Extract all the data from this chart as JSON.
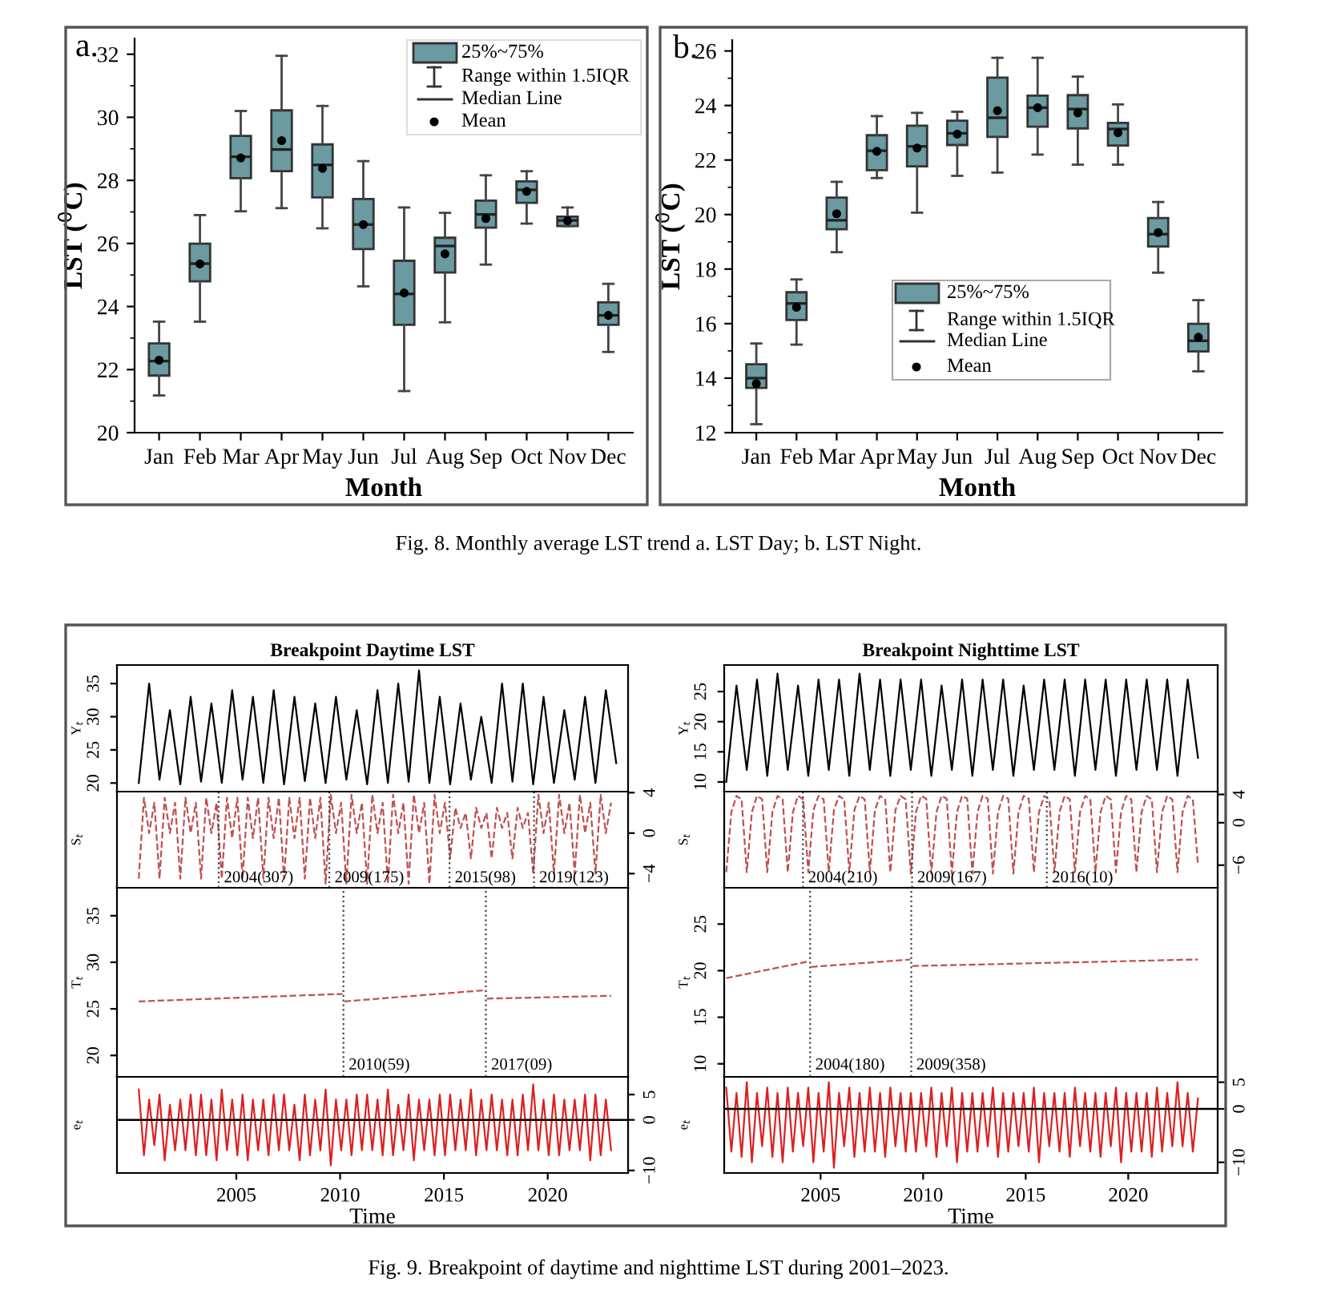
{
  "chart_data": [
    {
      "type": "box",
      "categories": [
        "Jan",
        "Feb",
        "Mar",
        "Apr",
        "May",
        "Jun",
        "Jul",
        "Aug",
        "Sep",
        "Oct",
        "Nov",
        "Dec"
      ],
      "series": [
        {
          "color": "#6b9aa1",
          "boxes": [
            {
              "low": 21.18,
              "q1": 21.81,
              "median": 22.27,
              "q3": 22.83,
              "high": 23.52,
              "mean": 22.3
            },
            {
              "low": 23.52,
              "q1": 24.8,
              "median": 25.36,
              "q3": 25.99,
              "high": 26.9,
              "mean": 25.35
            },
            {
              "low": 27.02,
              "q1": 28.07,
              "median": 28.75,
              "q3": 29.41,
              "high": 30.2,
              "mean": 28.71
            },
            {
              "low": 27.12,
              "q1": 28.29,
              "median": 28.98,
              "q3": 30.22,
              "high": 31.95,
              "mean": 29.26
            },
            {
              "low": 26.48,
              "q1": 27.46,
              "median": 28.49,
              "q3": 29.14,
              "high": 30.36,
              "mean": 28.38
            },
            {
              "low": 24.64,
              "q1": 25.82,
              "median": 26.6,
              "q3": 27.41,
              "high": 28.61,
              "mean": 26.6
            },
            {
              "low": 21.32,
              "q1": 23.42,
              "median": 24.4,
              "q3": 25.45,
              "high": 27.14,
              "mean": 24.43
            },
            {
              "low": 23.5,
              "q1": 25.08,
              "median": 25.92,
              "q3": 26.18,
              "high": 26.97,
              "mean": 25.67
            },
            {
              "low": 25.33,
              "q1": 26.5,
              "median": 26.92,
              "q3": 27.36,
              "high": 28.16,
              "mean": 26.79
            },
            {
              "low": 26.63,
              "q1": 27.29,
              "median": 27.7,
              "q3": 27.97,
              "high": 28.29,
              "mean": 27.65
            },
            {
              "low": 26.55,
              "q1": 26.55,
              "median": 26.73,
              "q3": 26.85,
              "high": 27.14,
              "mean": 26.72
            },
            {
              "low": 22.56,
              "q1": 23.42,
              "median": 23.72,
              "q3": 24.13,
              "high": 24.72,
              "mean": 23.72
            }
          ]
        }
      ],
      "ylim": [
        20,
        32.5
      ],
      "yticks": [
        20,
        22,
        24,
        26,
        28,
        30,
        32
      ],
      "xlabel": "Month",
      "ylabel": "LST ($^{0}$C)",
      "annotations": [
        "a.",
        "25%~75%",
        "Range within 1.5IQR",
        "Median Line",
        "Mean",
        "Fig. 8. Monthly average LST trend a. LST Day; b. LST Night."
      ]
    },
    {
      "type": "box",
      "categories": [
        "Jan",
        "Feb",
        "Mar",
        "Apr",
        "May",
        "Jun",
        "Jul",
        "Aug",
        "Sep",
        "Oct",
        "Nov",
        "Dec"
      ],
      "series": [
        {
          "color": "#6b9aa1",
          "boxes": [
            {
              "low": 12.31,
              "q1": 13.64,
              "median": 14.0,
              "q3": 14.51,
              "high": 15.27,
              "mean": 13.8
            },
            {
              "low": 15.23,
              "q1": 16.13,
              "median": 16.74,
              "q3": 17.15,
              "high": 17.62,
              "mean": 16.6
            },
            {
              "low": 18.62,
              "q1": 19.46,
              "median": 19.79,
              "q3": 20.62,
              "high": 21.2,
              "mean": 20.03
            },
            {
              "low": 21.34,
              "q1": 21.63,
              "median": 22.34,
              "q3": 22.91,
              "high": 23.61,
              "mean": 22.32
            },
            {
              "low": 20.07,
              "q1": 21.77,
              "median": 22.5,
              "q3": 23.26,
              "high": 23.73,
              "mean": 22.44
            },
            {
              "low": 21.42,
              "q1": 22.55,
              "median": 22.98,
              "q3": 23.44,
              "high": 23.77,
              "mean": 22.95
            },
            {
              "low": 21.54,
              "q1": 22.85,
              "median": 23.55,
              "q3": 25.02,
              "high": 25.75,
              "mean": 23.81
            },
            {
              "low": 22.2,
              "q1": 23.22,
              "median": 23.92,
              "q3": 24.36,
              "high": 25.75,
              "mean": 23.92
            },
            {
              "low": 21.83,
              "q1": 23.16,
              "median": 23.87,
              "q3": 24.38,
              "high": 25.06,
              "mean": 23.73
            },
            {
              "low": 21.83,
              "q1": 22.53,
              "median": 23.14,
              "q3": 23.36,
              "high": 24.04,
              "mean": 23.0
            },
            {
              "low": 17.87,
              "q1": 18.83,
              "median": 19.28,
              "q3": 19.87,
              "high": 20.46,
              "mean": 19.34
            },
            {
              "low": 14.25,
              "q1": 14.98,
              "median": 15.37,
              "q3": 15.99,
              "high": 16.86,
              "mean": 15.5
            }
          ]
        }
      ],
      "ylim": [
        12,
        26.4
      ],
      "yticks": [
        12,
        14,
        16,
        18,
        20,
        22,
        24,
        26
      ],
      "xlabel": "Month",
      "ylabel": "LST ($^{0}$C)",
      "annotations": [
        "b.",
        "25%~75%",
        "Range within 1.5IQR",
        "Median Line",
        "Mean"
      ]
    },
    {
      "type": "line",
      "title": "Breakpoint Daytime LST",
      "ylabel": "Y$_{t}$",
      "tick_labels": "y",
      "xlim": [
        1999.25,
        2023.87
      ],
      "xticks": [
        2005,
        2010,
        2015,
        2020
      ],
      "ylim": [
        18.7,
        37.8
      ],
      "yticks": [
        20,
        25,
        30,
        35
      ],
      "x": [
        2000.3,
        2000.8,
        2001.3,
        2001.8,
        2002.3,
        2002.8,
        2003.3,
        2003.8,
        2004.3,
        2004.8,
        2005.3,
        2005.8,
        2006.3,
        2006.8,
        2007.3,
        2007.8,
        2008.3,
        2008.8,
        2009.3,
        2009.8,
        2010.3,
        2010.8,
        2011.3,
        2011.8,
        2012.3,
        2012.8,
        2013.3,
        2013.8,
        2014.3,
        2014.8,
        2015.3,
        2015.8,
        2016.3,
        2016.8,
        2017.3,
        2017.8,
        2018.3,
        2018.8,
        2019.3,
        2019.8,
        2020.3,
        2020.8,
        2021.3,
        2021.8,
        2022.3,
        2022.8,
        2023.3
      ],
      "series": [
        {
          "color": "#000000",
          "values": [
            20,
            35,
            20.5,
            31,
            19.8,
            33,
            20.2,
            32,
            20,
            34,
            20.5,
            33,
            20,
            34,
            19.8,
            33,
            20.3,
            32,
            20,
            33,
            20.5,
            31,
            19.8,
            34,
            20,
            35,
            20.2,
            37,
            20,
            33,
            19.8,
            32,
            20.5,
            30,
            20,
            35,
            20.2,
            35,
            19.8,
            33,
            20,
            31,
            20.5,
            33,
            20,
            34,
            23
          ]
        }
      ]
    },
    {
      "type": "line",
      "ylabel": "S$_{t}$",
      "tick_labels": "y",
      "xlim": [
        1999.25,
        2023.87
      ],
      "xticks": [
        2005,
        2010,
        2015,
        2020
      ],
      "y2lim": [
        -5.4,
        4.1
      ],
      "y2ticks": [
        {
          "value": -4,
          "label": "−4"
        },
        0,
        4
      ],
      "x": [
        2000.3,
        2000.55,
        2000.8,
        2001.05,
        2001.3,
        2001.55,
        2001.8,
        2002.05,
        2002.3,
        2002.55,
        2002.8,
        2003.05,
        2003.3,
        2003.55,
        2003.8,
        2004.05,
        2004.3,
        2004.55,
        2004.8,
        2005.05,
        2005.3,
        2005.55,
        2005.8,
        2006.05,
        2006.3,
        2006.55,
        2006.8,
        2007.05,
        2007.3,
        2007.55,
        2007.8,
        2008.05,
        2008.3,
        2008.55,
        2008.8,
        2009.05,
        2009.3,
        2009.55,
        2009.8,
        2010.05,
        2010.3,
        2010.55,
        2010.8,
        2011.05,
        2011.3,
        2011.55,
        2011.8,
        2012.05,
        2012.3,
        2012.55,
        2012.8,
        2013.05,
        2013.3,
        2013.55,
        2013.8,
        2014.05,
        2014.3,
        2014.55,
        2014.8,
        2015.05,
        2015.3,
        2015.55,
        2015.8,
        2016.05,
        2016.3,
        2016.55,
        2016.8,
        2017.05,
        2017.3,
        2017.55,
        2017.8,
        2018.05,
        2018.3,
        2018.55,
        2018.8,
        2019.05,
        2019.3,
        2019.55,
        2019.8,
        2020.05,
        2020.3,
        2020.55,
        2020.8,
        2021.05,
        2021.3,
        2021.55,
        2021.8,
        2022.05,
        2022.3,
        2022.55,
        2022.8,
        2023.05
      ],
      "series": [
        {
          "color": "#c05050",
          "axis": "y2",
          "line_style": "dashed",
          "values": [
            -4.5,
            3.5,
            0,
            3,
            -4.5,
            3.5,
            0,
            3,
            -4.5,
            3.5,
            0,
            3,
            -4.5,
            3.5,
            0,
            3,
            -4.5,
            3.5,
            -0.5,
            3.5,
            -4.5,
            3.5,
            -0.5,
            3.5,
            -4.5,
            3.5,
            -0.5,
            3.5,
            -4.5,
            3.5,
            -0.5,
            3.5,
            -4.5,
            3.5,
            -0.5,
            3.5,
            -5,
            3.8,
            0,
            3,
            -5,
            3.8,
            0,
            3,
            -5,
            3.8,
            0,
            3,
            -5,
            3.8,
            0,
            3,
            -5,
            3.8,
            0,
            3,
            -5,
            3.8,
            0,
            3,
            -2.5,
            2.5,
            0.5,
            2,
            -2.5,
            2.5,
            0.5,
            2,
            -2.5,
            2.5,
            0.5,
            2,
            -2.5,
            2.5,
            0.5,
            2,
            -4,
            3.8,
            0,
            3,
            -4,
            3.8,
            0,
            3,
            -4,
            3.8,
            0,
            3,
            -4,
            3.8,
            0,
            3
          ]
        }
      ],
      "ref_lines": [
        {
          "axis": "x",
          "value": 2004.15,
          "label": "2004(307)",
          "line_style": "dotted"
        },
        {
          "axis": "x",
          "value": 2009.48,
          "label": "2009(175)",
          "line_style": "dotted"
        },
        {
          "axis": "x",
          "value": 2015.27,
          "label": "2015(98)",
          "line_style": "dotted"
        },
        {
          "axis": "x",
          "value": 2019.34,
          "label": "2019(123)",
          "line_style": "dotted"
        }
      ]
    },
    {
      "type": "line",
      "ylabel": "T$_{t}$",
      "tick_labels": "y",
      "xlim": [
        1999.25,
        2023.87
      ],
      "xticks": [
        2005,
        2010,
        2015,
        2020
      ],
      "ylim": [
        17.7,
        38
      ],
      "yticks": [
        20,
        25,
        30,
        35
      ],
      "x": [
        2000.3,
        2010.11,
        2010.16,
        2010.21,
        2016.97,
        2017.02,
        2017.07,
        2023.05
      ],
      "series": [
        {
          "color": "#c05050",
          "line_style": "dashed",
          "values": [
            25.8,
            26.6,
            null,
            25.8,
            27.0,
            null,
            26.1,
            26.4
          ]
        }
      ],
      "ref_lines": [
        {
          "axis": "x",
          "value": 2010.16,
          "label": "2010(59)",
          "line_style": "dotted"
        },
        {
          "axis": "x",
          "value": 2017.02,
          "label": "2017(09)",
          "line_style": "dotted"
        }
      ]
    },
    {
      "type": "line",
      "ylabel": "e$_{t}$",
      "xlabel": "Time",
      "xlim": [
        1999.25,
        2023.87
      ],
      "xticks": [
        2005,
        2010,
        2015,
        2020
      ],
      "y2lim": [
        -10.5,
        8.5
      ],
      "y2ticks": [
        {
          "value": -10,
          "label": "−10"
        },
        0,
        5
      ],
      "x": [
        2000.3,
        2000.55,
        2000.8,
        2001.05,
        2001.3,
        2001.55,
        2001.8,
        2002.05,
        2002.3,
        2002.55,
        2002.8,
        2003.05,
        2003.3,
        2003.55,
        2003.8,
        2004.05,
        2004.3,
        2004.55,
        2004.8,
        2005.05,
        2005.3,
        2005.55,
        2005.8,
        2006.05,
        2006.3,
        2006.55,
        2006.8,
        2007.05,
        2007.3,
        2007.55,
        2007.8,
        2008.05,
        2008.3,
        2008.55,
        2008.8,
        2009.05,
        2009.3,
        2009.55,
        2009.8,
        2010.05,
        2010.3,
        2010.55,
        2010.8,
        2011.05,
        2011.3,
        2011.55,
        2011.8,
        2012.05,
        2012.3,
        2012.55,
        2012.8,
        2013.05,
        2013.3,
        2013.55,
        2013.8,
        2014.05,
        2014.3,
        2014.55,
        2014.8,
        2015.05,
        2015.3,
        2015.55,
        2015.8,
        2016.05,
        2016.3,
        2016.55,
        2016.8,
        2017.05,
        2017.3,
        2017.55,
        2017.8,
        2018.05,
        2018.3,
        2018.55,
        2018.8,
        2019.05,
        2019.3,
        2019.55,
        2019.8,
        2020.05,
        2020.3,
        2020.55,
        2020.8,
        2021.05,
        2021.3,
        2021.55,
        2021.8,
        2022.05,
        2022.3,
        2022.55,
        2022.8,
        2023.05
      ],
      "series": [
        {
          "color": "#dd2020",
          "axis": "y2",
          "values": [
            6,
            -7,
            4,
            -5,
            5,
            -8,
            3,
            -6,
            4,
            -6,
            5,
            -7,
            5,
            -7,
            4,
            -8,
            6,
            -6,
            4,
            -7,
            5,
            -8,
            4,
            -6,
            4,
            -7,
            5,
            -6,
            5,
            -6,
            3,
            -8,
            5,
            -7,
            4,
            -6,
            6,
            -9,
            4,
            -6,
            4,
            -7,
            5,
            -6,
            5,
            -6,
            4,
            -7,
            6,
            -7,
            3,
            -6,
            5,
            -8,
            4,
            -6,
            4,
            -7,
            5,
            -7,
            5,
            -6,
            4,
            -6,
            6,
            -7,
            4,
            -6,
            5,
            -6,
            4,
            -7,
            4,
            -7,
            5,
            -6,
            7,
            -6,
            4,
            -7,
            5,
            -7,
            4,
            -6,
            4,
            -6,
            5,
            -8,
            5,
            -7,
            4,
            -6
          ]
        }
      ],
      "ref_lines": [
        {
          "axis": "y2",
          "value": 0,
          "color": "#000000",
          "line_style": "solid"
        }
      ],
      "annotations": [
        "Fig. 9. Breakpoint of daytime and nighttime LST during 2001–2023."
      ]
    },
    {
      "type": "line",
      "title": "Breakpoint Nighttime LST",
      "ylabel": "Y$_{t}$",
      "tick_labels": "y",
      "xlim": [
        2000.3,
        2024.36
      ],
      "xticks": [
        2005,
        2010,
        2015,
        2020
      ],
      "ylim": [
        8.4,
        29.4
      ],
      "yticks": [
        10,
        15,
        20,
        25
      ],
      "x": [
        2000.4,
        2000.9,
        2001.4,
        2001.9,
        2002.4,
        2002.9,
        2003.4,
        2003.9,
        2004.4,
        2004.9,
        2005.4,
        2005.9,
        2006.4,
        2006.9,
        2007.4,
        2007.9,
        2008.4,
        2008.9,
        2009.4,
        2009.9,
        2010.4,
        2010.9,
        2011.4,
        2011.9,
        2012.4,
        2012.9,
        2013.4,
        2013.9,
        2014.4,
        2014.9,
        2015.4,
        2015.9,
        2016.4,
        2016.9,
        2017.4,
        2017.9,
        2018.4,
        2018.9,
        2019.4,
        2019.9,
        2020.4,
        2020.9,
        2021.4,
        2021.9,
        2022.4,
        2022.9,
        2023.4
      ],
      "series": [
        {
          "color": "#000000",
          "values": [
            10,
            26,
            12,
            27,
            11,
            28,
            12,
            26,
            11,
            27,
            12,
            27,
            11,
            28,
            12,
            27,
            11,
            27,
            12,
            27,
            11,
            26,
            12,
            27,
            11,
            27,
            12,
            27,
            11,
            26,
            12,
            27,
            12,
            27,
            11,
            27,
            12,
            27,
            11,
            27,
            12,
            27,
            12,
            27,
            11,
            27,
            14
          ]
        }
      ]
    },
    {
      "type": "line",
      "ylabel": "S$_{t}$",
      "tick_labels": "y",
      "xlim": [
        2000.3,
        2024.36
      ],
      "xticks": [
        2005,
        2010,
        2015,
        2020
      ],
      "y2lim": [
        -9.2,
        4.4
      ],
      "y2ticks": [
        {
          "value": -6,
          "label": "−6"
        },
        0,
        4
      ],
      "x": [
        2000.4,
        2000.65,
        2000.9,
        2001.15,
        2001.4,
        2001.65,
        2001.9,
        2002.15,
        2002.4,
        2002.65,
        2002.9,
        2003.15,
        2003.4,
        2003.65,
        2003.9,
        2004.15,
        2004.4,
        2004.65,
        2004.9,
        2005.15,
        2005.4,
        2005.65,
        2005.9,
        2006.15,
        2006.4,
        2006.65,
        2006.9,
        2007.15,
        2007.4,
        2007.65,
        2007.9,
        2008.15,
        2008.4,
        2008.65,
        2008.9,
        2009.15,
        2009.4,
        2009.65,
        2009.9,
        2010.15,
        2010.4,
        2010.65,
        2010.9,
        2011.15,
        2011.4,
        2011.65,
        2011.9,
        2012.15,
        2012.4,
        2012.65,
        2012.9,
        2013.15,
        2013.4,
        2013.65,
        2013.9,
        2014.15,
        2014.4,
        2014.65,
        2014.9,
        2015.15,
        2015.4,
        2015.65,
        2015.9,
        2016.15,
        2016.4,
        2016.65,
        2016.9,
        2017.15,
        2017.4,
        2017.65,
        2017.9,
        2018.15,
        2018.4,
        2018.65,
        2018.9,
        2019.15,
        2019.4,
        2019.65,
        2019.9,
        2020.15,
        2020.4,
        2020.65,
        2020.9,
        2021.15,
        2021.4,
        2021.65,
        2021.9,
        2022.15,
        2022.4,
        2022.65,
        2022.9,
        2023.15,
        2023.4
      ],
      "series": [
        {
          "color": "#c05050",
          "axis": "y2",
          "line_style": "dashed",
          "values": [
            -7,
            1.5,
            3.8,
            3.3,
            -7,
            1.5,
            3.8,
            3.3,
            -7,
            1.5,
            3.8,
            3.3,
            -7,
            1.5,
            3.8,
            3.3,
            -7,
            1.8,
            3.8,
            3.3,
            -7,
            1.8,
            3.8,
            3.3,
            -7,
            1.8,
            3.8,
            3.3,
            -7,
            1.8,
            3.8,
            3.3,
            -7,
            1.8,
            3.8,
            3.3,
            -7.2,
            1.5,
            3.8,
            3.4,
            -7.2,
            1.5,
            3.8,
            3.4,
            -7.2,
            1.5,
            3.8,
            3.4,
            -7.2,
            1.5,
            3.8,
            3.4,
            -7.2,
            1.5,
            3.8,
            3.4,
            -7.2,
            1.5,
            3.8,
            3.4,
            -7,
            1.5,
            3.8,
            3.3,
            -7,
            1.5,
            3.8,
            3.3,
            -7,
            1.5,
            3.8,
            3.3,
            -7,
            1.5,
            3.8,
            3.3,
            -7,
            1.5,
            3.8,
            3.3,
            -7,
            1.5,
            3.8,
            3.3,
            -7,
            1.5,
            3.8,
            3.3,
            -7,
            1.5,
            3.8,
            3.3,
            -6
          ]
        }
      ],
      "ref_lines": [
        {
          "axis": "x",
          "value": 2004.14,
          "label": "2004(210)",
          "line_style": "dotted"
        },
        {
          "axis": "x",
          "value": 2009.46,
          "label": "2009(167)",
          "line_style": "dotted"
        },
        {
          "axis": "x",
          "value": 2016.03,
          "label": "2016(10)",
          "line_style": "dotted"
        }
      ]
    },
    {
      "type": "line",
      "ylabel": "T$_{t}$",
      "tick_labels": "y",
      "xlim": [
        2000.3,
        2024.36
      ],
      "xticks": [
        2005,
        2010,
        2015,
        2020
      ],
      "ylim": [
        8.6,
        28.9
      ],
      "yticks": [
        10,
        15,
        20,
        25
      ],
      "x": [
        2000.4,
        2004.44,
        2004.49,
        2004.54,
        2009.37,
        2009.42,
        2009.47,
        2023.4
      ],
      "series": [
        {
          "color": "#c05050",
          "line_style": "dashed",
          "values": [
            19.2,
            21.0,
            null,
            20.4,
            21.2,
            null,
            20.5,
            21.2
          ]
        }
      ],
      "ref_lines": [
        {
          "axis": "x",
          "value": 2004.49,
          "label": "2004(180)",
          "line_style": "dotted"
        },
        {
          "axis": "x",
          "value": 2009.42,
          "label": "2009(358)",
          "line_style": "dotted"
        }
      ]
    },
    {
      "type": "line",
      "ylabel": "e$_{t}$",
      "xlabel": "Time",
      "xlim": [
        2000.3,
        2024.36
      ],
      "xticks": [
        2005,
        2010,
        2015,
        2020
      ],
      "y2lim": [
        -12,
        6
      ],
      "y2ticks": [
        {
          "value": -10,
          "label": "−10"
        },
        0,
        5
      ],
      "x": [
        2000.4,
        2000.65,
        2000.9,
        2001.15,
        2001.4,
        2001.65,
        2001.9,
        2002.15,
        2002.4,
        2002.65,
        2002.9,
        2003.15,
        2003.4,
        2003.65,
        2003.9,
        2004.15,
        2004.4,
        2004.65,
        2004.9,
        2005.15,
        2005.4,
        2005.65,
        2005.9,
        2006.15,
        2006.4,
        2006.65,
        2006.9,
        2007.15,
        2007.4,
        2007.65,
        2007.9,
        2008.15,
        2008.4,
        2008.65,
        2008.9,
        2009.15,
        2009.4,
        2009.65,
        2009.9,
        2010.15,
        2010.4,
        2010.65,
        2010.9,
        2011.15,
        2011.4,
        2011.65,
        2011.9,
        2012.15,
        2012.4,
        2012.65,
        2012.9,
        2013.15,
        2013.4,
        2013.65,
        2013.9,
        2014.15,
        2014.4,
        2014.65,
        2014.9,
        2015.15,
        2015.4,
        2015.65,
        2015.9,
        2016.15,
        2016.4,
        2016.65,
        2016.9,
        2017.15,
        2017.4,
        2017.65,
        2017.9,
        2018.15,
        2018.4,
        2018.65,
        2018.9,
        2019.15,
        2019.4,
        2019.65,
        2019.9,
        2020.15,
        2020.4,
        2020.65,
        2020.9,
        2021.15,
        2021.4,
        2021.65,
        2021.9,
        2022.15,
        2022.4,
        2022.65,
        2022.9,
        2023.15,
        2023.4
      ],
      "series": [
        {
          "color": "#dd2020",
          "axis": "y2",
          "values": [
            4,
            -8,
            3,
            -9,
            5,
            -10,
            3,
            -7,
            4,
            -9,
            3,
            -10,
            4,
            -8,
            3,
            -7,
            4,
            -10,
            3,
            -8,
            5,
            -11,
            3,
            -7,
            4,
            -9,
            3,
            -8,
            4,
            -8,
            3,
            -9,
            4,
            -7,
            3,
            -8,
            3,
            -8,
            3,
            -7,
            4,
            -9,
            3,
            -7,
            4,
            -10,
            3,
            -8,
            3,
            -8,
            3,
            -7,
            4,
            -9,
            3,
            -8,
            3,
            -7,
            3,
            -8,
            4,
            -10,
            3,
            -7,
            3,
            -8,
            3,
            -9,
            4,
            -7,
            3,
            -8,
            3,
            -9,
            3,
            -7,
            4,
            -10,
            3,
            -8,
            3,
            -8,
            3,
            -9,
            4,
            -8,
            3,
            -7,
            5,
            -7,
            3,
            -8,
            2
          ]
        }
      ],
      "ref_lines": [
        {
          "axis": "y2",
          "value": 0,
          "color": "#000000",
          "line_style": "solid"
        }
      ]
    }
  ]
}
